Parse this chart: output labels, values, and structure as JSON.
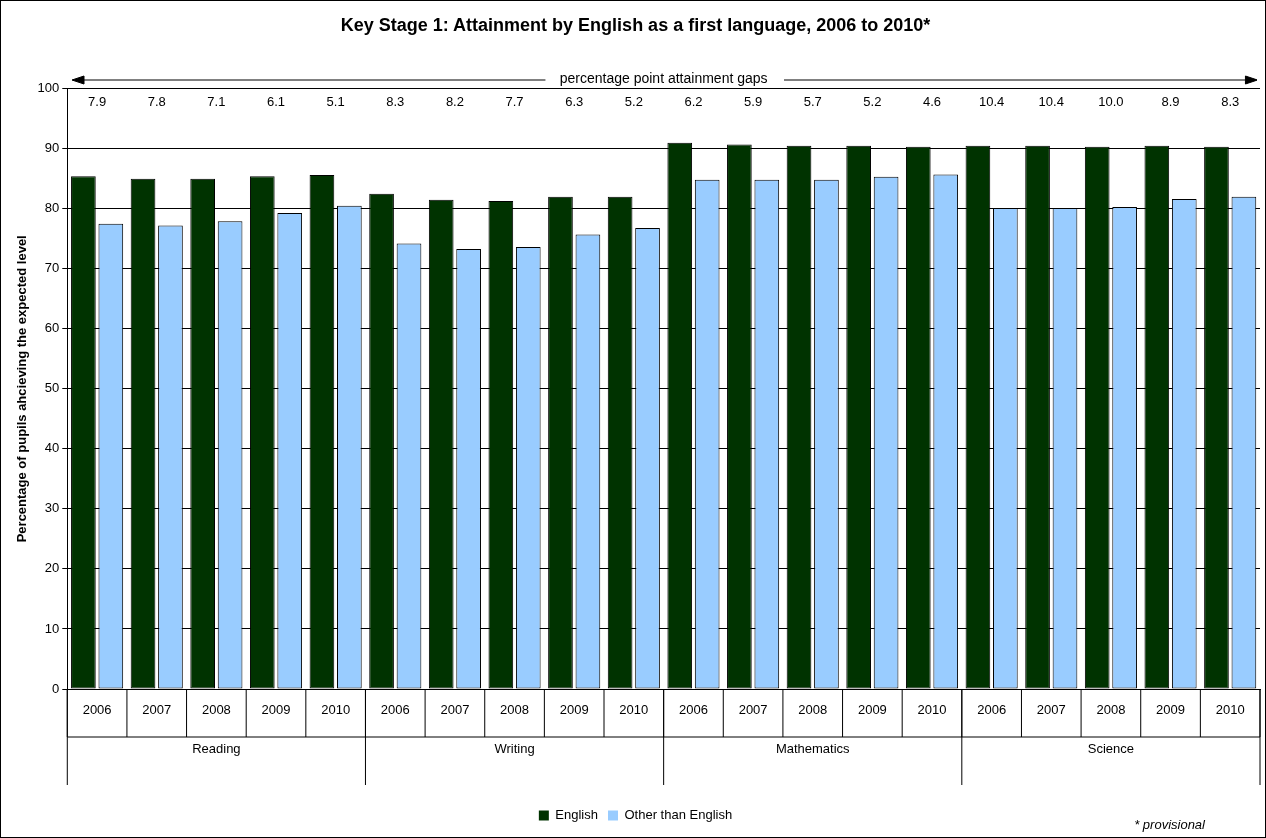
{
  "chart_data": {
    "type": "bar",
    "title": "Key Stage 1: Attainment by English as a first language, 2006 to 2010*",
    "ylabel": "Percentage of pupils ahcieving the expected level",
    "categories": [
      "2006",
      "2007",
      "2008",
      "2009",
      "2010",
      "2006",
      "2007",
      "2008",
      "2009",
      "2010",
      "2006",
      "2007",
      "2008",
      "2009",
      "2010",
      "2006",
      "2007",
      "2008",
      "2009",
      "2010"
    ],
    "series": [
      {
        "name": "English",
        "color": "#003300",
        "values": [
          85.4,
          85.0,
          85.0,
          85.4,
          85.6,
          82.5,
          81.5,
          81.3,
          82.0,
          82.0,
          91.0,
          90.7,
          90.5,
          90.5,
          90.3,
          90.5,
          90.5,
          90.3,
          90.5,
          90.3
        ]
      },
      {
        "name": "Other than English",
        "color": "#99ccff",
        "values": [
          77.5,
          77.2,
          77.9,
          79.3,
          80.5,
          74.2,
          73.3,
          73.6,
          75.7,
          76.8,
          84.8,
          84.8,
          84.8,
          85.3,
          85.7,
          80.1,
          80.1,
          80.3,
          81.6,
          82.0
        ]
      }
    ],
    "annotations": [
      "percentage point attainment gaps",
      "7.9",
      "7.8",
      "7.1",
      "6.1",
      "5.1",
      "8.3",
      "8.2",
      "7.7",
      "6.3",
      "5.2",
      "6.2",
      "5.9",
      "5.7",
      "5.2",
      "4.6",
      "10.4",
      "10.4",
      "10.0",
      "8.9",
      "8.3",
      "Reading",
      "Writing",
      "Mathematics",
      "Science",
      "* provisional"
    ],
    "ylim": [
      0,
      100
    ],
    "yticks": [
      0,
      10,
      20,
      30,
      40,
      50,
      60,
      70,
      80,
      90,
      100
    ],
    "grid": "y",
    "legend": "bottom"
  }
}
